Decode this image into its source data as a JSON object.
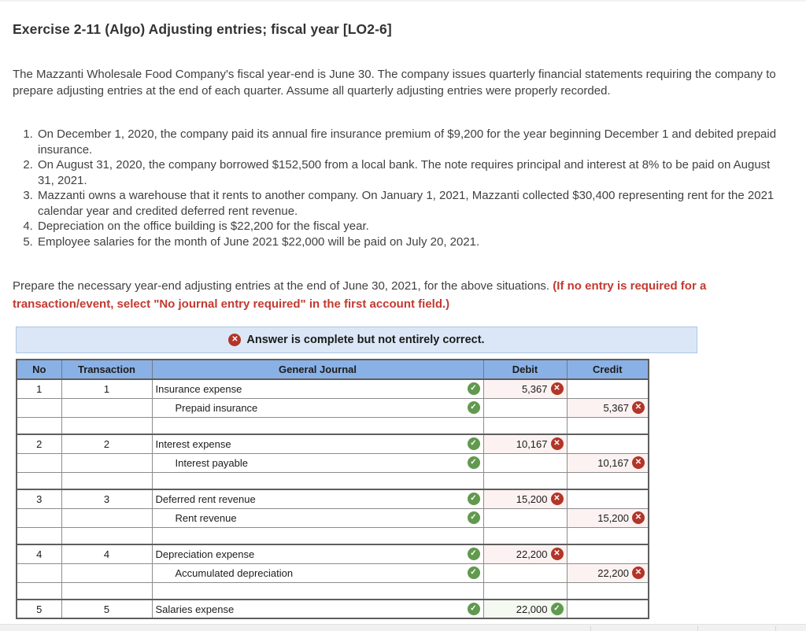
{
  "title": "Exercise 2-11 (Algo) Adjusting entries; fiscal year [LO2-6]",
  "intro": "The Mazzanti Wholesale Food Company's fiscal year-end is June 30. The company issues quarterly financial statements requiring the company to prepare adjusting entries at the end of each quarter. Assume all quarterly adjusting entries were properly recorded.",
  "situations": [
    "On December 1, 2020, the company paid its annual fire insurance premium of $9,200 for the year beginning December 1 and debited prepaid insurance.",
    "On August 31, 2020, the company borrowed $152,500 from a local bank. The note requires principal and interest at 8% to be paid on August 31, 2021.",
    "Mazzanti owns a warehouse that it rents to another company. On January 1, 2021, Mazzanti collected $30,400 representing rent for the 2021 calendar year and credited deferred rent revenue.",
    "Depreciation on the office building is $22,200 for the fiscal year.",
    "Employee salaries for the month of June 2021 $22,000 will be paid on July 20, 2021."
  ],
  "prepare": {
    "normal": "Prepare the necessary year-end adjusting entries at the end of June 30, 2021, for the above situations.",
    "red": "(If no entry is required for a transaction/event, select \"No journal entry required\" in the first account field.)"
  },
  "banner": {
    "icon": "x-circle-icon",
    "text": "Answer is complete but not entirely correct."
  },
  "icons": {
    "correct": "✓",
    "incorrect": "✕"
  },
  "colors": {
    "header_blue": "#8ab1e5",
    "banner_blue_bg": "#dbe7f6",
    "correct_green": "#61994f",
    "incorrect_red": "#b23529",
    "instruction_red": "#c23a30",
    "journal_cell_bg": "#f5f9f1",
    "incorrect_cell_bg": "#fcf2f1"
  },
  "table": {
    "columns": [
      "No",
      "Transaction",
      "General Journal",
      "Debit",
      "Credit"
    ],
    "groups": [
      {
        "no": "1",
        "transaction": "1",
        "spacer": true,
        "lines": [
          {
            "account": "Insurance expense",
            "indent": false,
            "journal_status": "correct",
            "debit": {
              "value": "5,367",
              "status": "incorrect"
            },
            "credit": null
          },
          {
            "account": "Prepaid insurance",
            "indent": true,
            "journal_status": "correct",
            "debit": null,
            "credit": {
              "value": "5,367",
              "status": "incorrect"
            }
          }
        ]
      },
      {
        "no": "2",
        "transaction": "2",
        "spacer": true,
        "lines": [
          {
            "account": "Interest expense",
            "indent": false,
            "journal_status": "correct",
            "debit": {
              "value": "10,167",
              "status": "incorrect"
            },
            "credit": null
          },
          {
            "account": "Interest payable",
            "indent": true,
            "journal_status": "correct",
            "debit": null,
            "credit": {
              "value": "10,167",
              "status": "incorrect"
            }
          }
        ]
      },
      {
        "no": "3",
        "transaction": "3",
        "spacer": true,
        "lines": [
          {
            "account": "Deferred rent revenue",
            "indent": false,
            "journal_status": "correct",
            "debit": {
              "value": "15,200",
              "status": "incorrect"
            },
            "credit": null
          },
          {
            "account": "Rent revenue",
            "indent": true,
            "journal_status": "correct",
            "debit": null,
            "credit": {
              "value": "15,200",
              "status": "incorrect"
            }
          }
        ]
      },
      {
        "no": "4",
        "transaction": "4",
        "spacer": true,
        "lines": [
          {
            "account": "Depreciation expense",
            "indent": false,
            "journal_status": "correct",
            "debit": {
              "value": "22,200",
              "status": "incorrect"
            },
            "credit": null
          },
          {
            "account": "Accumulated depreciation",
            "indent": true,
            "journal_status": "correct",
            "debit": null,
            "credit": {
              "value": "22,200",
              "status": "incorrect"
            }
          }
        ]
      },
      {
        "no": "5",
        "transaction": "5",
        "spacer": false,
        "lines": [
          {
            "account": "Salaries expense",
            "indent": false,
            "journal_status": "correct",
            "debit": {
              "value": "22,000",
              "status": "correct"
            },
            "credit": null
          }
        ]
      }
    ]
  }
}
